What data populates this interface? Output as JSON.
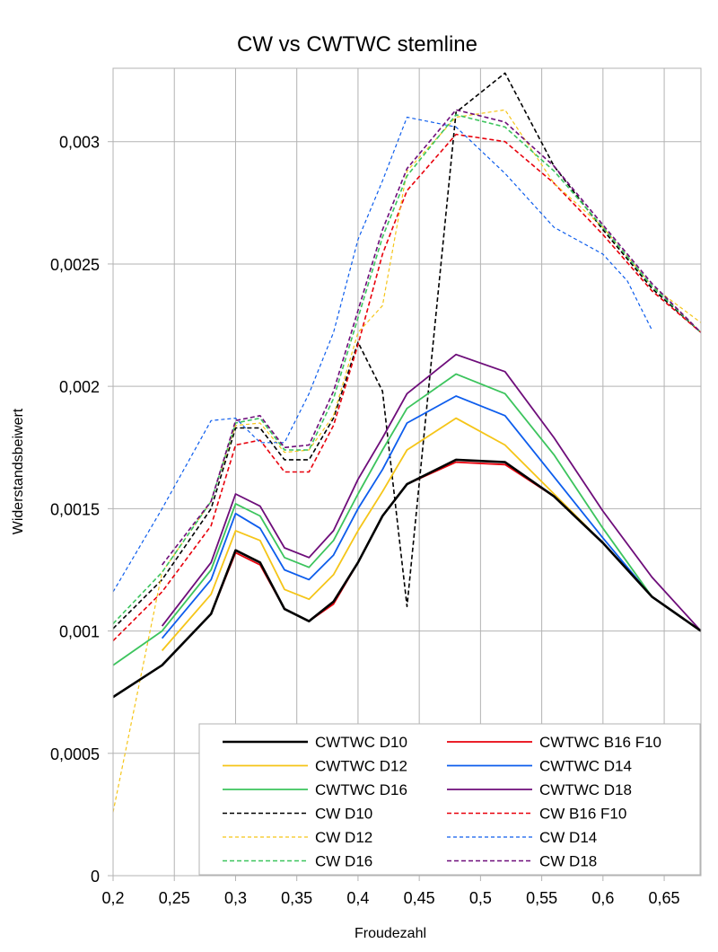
{
  "chart_data": {
    "type": "line",
    "title": "CW vs CWTWC stemline",
    "xlabel": "Froudezahl",
    "ylabel": "Widerstandsbeiwert",
    "xlim": [
      0.2,
      0.68
    ],
    "ylim": [
      0,
      0.0033
    ],
    "x_ticks": [
      0.2,
      0.25,
      0.3,
      0.35,
      0.4,
      0.45,
      0.5,
      0.55,
      0.6,
      0.65
    ],
    "x_tick_labels": [
      "0,2",
      "0,25",
      "0,3",
      "0,35",
      "0,4",
      "0,45",
      "0,5",
      "0,55",
      "0,6",
      "0,65"
    ],
    "y_ticks": [
      0,
      0.0005,
      0.001,
      0.0015,
      0.002,
      0.0025,
      0.003
    ],
    "y_tick_labels": [
      "0",
      "0,0005",
      "0,001",
      "0,0015",
      "0,002",
      "0,0025",
      "0,003"
    ],
    "grid": true,
    "legend_position": "bottom-right",
    "series": [
      {
        "name": "CWTWC D10",
        "color": "#000000",
        "style": "solid",
        "width": 2.6,
        "x": [
          0.2,
          0.24,
          0.28,
          0.3,
          0.32,
          0.34,
          0.36,
          0.38,
          0.4,
          0.42,
          0.44,
          0.48,
          0.52,
          0.56,
          0.6,
          0.64,
          0.68
        ],
        "y": [
          0.00073,
          0.00086,
          0.00107,
          0.00133,
          0.00128,
          0.00109,
          0.00104,
          0.00112,
          0.00128,
          0.00147,
          0.0016,
          0.0017,
          0.00169,
          0.00155,
          0.00136,
          0.00114,
          0.001
        ]
      },
      {
        "name": "CWTWC B16 F10",
        "color": "#e8000b",
        "style": "solid",
        "width": 1.8,
        "x": [
          0.2,
          0.24,
          0.28,
          0.3,
          0.32,
          0.34,
          0.36,
          0.38,
          0.4,
          0.42,
          0.44,
          0.48,
          0.52,
          0.56,
          0.6,
          0.64,
          0.68
        ],
        "y": [
          0.00073,
          0.00086,
          0.00107,
          0.00132,
          0.00127,
          0.00109,
          0.00104,
          0.00111,
          0.00128,
          0.00147,
          0.0016,
          0.00169,
          0.00168,
          0.00155,
          0.00136,
          0.00114,
          0.001
        ]
      },
      {
        "name": "CWTWC D12",
        "color": "#f5c518",
        "style": "solid",
        "width": 1.8,
        "x": [
          0.24,
          0.28,
          0.3,
          0.32,
          0.34,
          0.36,
          0.38,
          0.4,
          0.42,
          0.44,
          0.48,
          0.52,
          0.56,
          0.6,
          0.64,
          0.68
        ],
        "y": [
          0.00092,
          0.00115,
          0.00141,
          0.00137,
          0.00117,
          0.00113,
          0.00123,
          0.00141,
          0.00157,
          0.00174,
          0.00187,
          0.00176,
          0.00156,
          0.00136,
          0.00114,
          0.001
        ]
      },
      {
        "name": "CWTWC D14",
        "color": "#0d5ded",
        "style": "solid",
        "width": 1.8,
        "x": [
          0.24,
          0.28,
          0.3,
          0.32,
          0.34,
          0.36,
          0.38,
          0.4,
          0.42,
          0.44,
          0.48,
          0.52,
          0.56,
          0.6,
          0.64,
          0.68
        ],
        "y": [
          0.00097,
          0.00121,
          0.00148,
          0.00142,
          0.00125,
          0.00121,
          0.00131,
          0.0015,
          0.00166,
          0.00185,
          0.00196,
          0.00188,
          0.00163,
          0.00138,
          0.00114,
          0.001
        ]
      },
      {
        "name": "CWTWC D16",
        "color": "#3cc45d",
        "style": "solid",
        "width": 1.8,
        "x": [
          0.2,
          0.24,
          0.28,
          0.3,
          0.32,
          0.34,
          0.36,
          0.38,
          0.4,
          0.42,
          0.44,
          0.48,
          0.52,
          0.56,
          0.6,
          0.64,
          0.68
        ],
        "y": [
          0.00086,
          0.001,
          0.00125,
          0.00152,
          0.00147,
          0.0013,
          0.00126,
          0.00137,
          0.00156,
          0.00174,
          0.00191,
          0.00205,
          0.00197,
          0.00172,
          0.00142,
          0.00114,
          0.001
        ]
      },
      {
        "name": "CWTWC D18",
        "color": "#6e0d7a",
        "style": "solid",
        "width": 1.8,
        "x": [
          0.24,
          0.28,
          0.3,
          0.32,
          0.34,
          0.36,
          0.38,
          0.4,
          0.42,
          0.44,
          0.48,
          0.52,
          0.56,
          0.6,
          0.64,
          0.68
        ],
        "y": [
          0.00102,
          0.00128,
          0.00156,
          0.00151,
          0.00134,
          0.0013,
          0.00141,
          0.00162,
          0.00179,
          0.00197,
          0.00213,
          0.00206,
          0.00179,
          0.00149,
          0.00122,
          0.001
        ]
      },
      {
        "name": "CW D10",
        "color": "#000000",
        "style": "dashed",
        "width": 1.6,
        "x": [
          0.2,
          0.24,
          0.28,
          0.3,
          0.32,
          0.34,
          0.36,
          0.38,
          0.4,
          0.42,
          0.44,
          0.48,
          0.52,
          0.56,
          0.6,
          0.64,
          0.68
        ],
        "y": [
          0.00101,
          0.00121,
          0.0015,
          0.00183,
          0.00183,
          0.0017,
          0.0017,
          0.00187,
          0.00218,
          0.00198,
          0.0011,
          0.00312,
          0.00328,
          0.0029,
          0.00264,
          0.0024,
          0.00222
        ]
      },
      {
        "name": "CW B16 F10",
        "color": "#e8000b",
        "style": "dashed",
        "width": 1.6,
        "x": [
          0.2,
          0.24,
          0.28,
          0.3,
          0.32,
          0.34,
          0.36,
          0.38,
          0.4,
          0.42,
          0.44,
          0.48,
          0.52,
          0.56,
          0.6,
          0.64,
          0.68
        ],
        "y": [
          0.00096,
          0.00116,
          0.00143,
          0.00176,
          0.00178,
          0.00165,
          0.00165,
          0.00184,
          0.00217,
          0.00254,
          0.0028,
          0.00303,
          0.003,
          0.00283,
          0.00262,
          0.00239,
          0.00222
        ]
      },
      {
        "name": "CW D12",
        "color": "#f5c518",
        "style": "dashed",
        "width": 1.2,
        "x": [
          0.2,
          0.24,
          0.28,
          0.3,
          0.32,
          0.34,
          0.36,
          0.38,
          0.4,
          0.42,
          0.44,
          0.48,
          0.52,
          0.56,
          0.6,
          0.64,
          0.68
        ],
        "y": [
          0.00026,
          0.00124,
          0.00153,
          0.00184,
          0.00185,
          0.00173,
          0.00174,
          0.00188,
          0.00222,
          0.00233,
          0.00288,
          0.0031,
          0.00313,
          0.00283,
          0.00265,
          0.00241,
          0.00226
        ]
      },
      {
        "name": "CW D14",
        "color": "#0d5ded",
        "style": "dashed",
        "width": 1.2,
        "x": [
          0.2,
          0.24,
          0.28,
          0.3,
          0.32,
          0.34,
          0.36,
          0.38,
          0.4,
          0.42,
          0.44,
          0.48,
          0.52,
          0.56,
          0.6,
          0.62,
          0.64
        ],
        "y": [
          0.00116,
          0.0015,
          0.00186,
          0.00187,
          0.00177,
          0.00177,
          0.00197,
          0.00222,
          0.0026,
          0.00284,
          0.0031,
          0.00306,
          0.00287,
          0.00265,
          0.00254,
          0.00243,
          0.00223
        ]
      },
      {
        "name": "CW D16",
        "color": "#3cc45d",
        "style": "dashed",
        "width": 1.6,
        "x": [
          0.2,
          0.24,
          0.28,
          0.3,
          0.32,
          0.34,
          0.36,
          0.38,
          0.4,
          0.42,
          0.44,
          0.48,
          0.52,
          0.56,
          0.6,
          0.64,
          0.68
        ],
        "y": [
          0.00103,
          0.00124,
          0.00153,
          0.00185,
          0.00187,
          0.00174,
          0.00174,
          0.00195,
          0.00228,
          0.00261,
          0.00286,
          0.00311,
          0.00306,
          0.00288,
          0.00265,
          0.00241,
          0.00222
        ]
      },
      {
        "name": "CW D18",
        "color": "#6e0d7a",
        "style": "dashed",
        "width": 1.6,
        "x": [
          0.24,
          0.28,
          0.3,
          0.32,
          0.34,
          0.36,
          0.38,
          0.4,
          0.42,
          0.44,
          0.48,
          0.52,
          0.56,
          0.6,
          0.64,
          0.68
        ],
        "y": [
          0.00127,
          0.00153,
          0.00186,
          0.00188,
          0.00175,
          0.00176,
          0.00198,
          0.00231,
          0.00264,
          0.00289,
          0.00313,
          0.00308,
          0.0029,
          0.00266,
          0.00242,
          0.00222
        ]
      }
    ]
  }
}
